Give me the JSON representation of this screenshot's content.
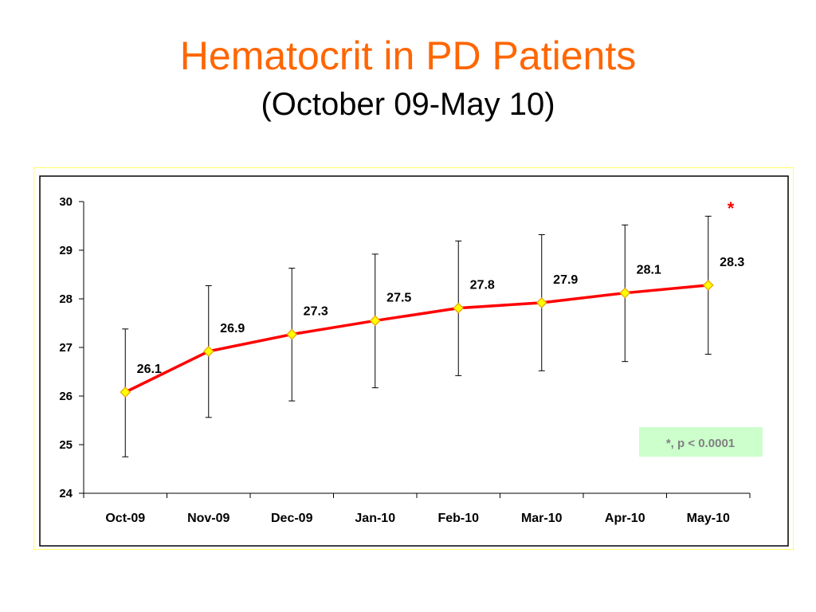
{
  "slide": {
    "title": "Hematocrit in PD Patients",
    "subtitle": "(October 09-May 10)"
  },
  "colors": {
    "title": "#ff6600",
    "series_line": "#ff0000",
    "marker_fill": "#ffff00",
    "marker_stroke": "#e6a100",
    "significance_box": "#ccffcc",
    "significance_text": "#808080",
    "frame_border": "#ffff66"
  },
  "chart_data": {
    "type": "line",
    "categories": [
      "Oct-09",
      "Nov-09",
      "Dec-09",
      "Jan-10",
      "Feb-10",
      "Mar-10",
      "Apr-10",
      "May-10"
    ],
    "series": [
      {
        "values": [
          26.08,
          26.92,
          27.27,
          27.55,
          27.81,
          27.92,
          28.12,
          28.28
        ],
        "data_labels": [
          "26.1",
          "26.9",
          "27.3",
          "27.5",
          "27.8",
          "27.9",
          "28.1",
          "28.3"
        ],
        "error_upper": [
          27.38,
          28.27,
          28.63,
          28.92,
          29.19,
          29.32,
          29.52,
          29.7
        ],
        "error_lower": [
          24.75,
          25.56,
          25.9,
          26.17,
          26.42,
          26.52,
          26.71,
          26.86
        ]
      }
    ],
    "y_ticks": [
      "24",
      "25",
      "26",
      "27",
      "28",
      "29",
      "30"
    ],
    "ylim": [
      24,
      30
    ],
    "grid": false,
    "annotations": {
      "significance_marker": "*",
      "significance_note": "*, p < 0.0001"
    }
  }
}
